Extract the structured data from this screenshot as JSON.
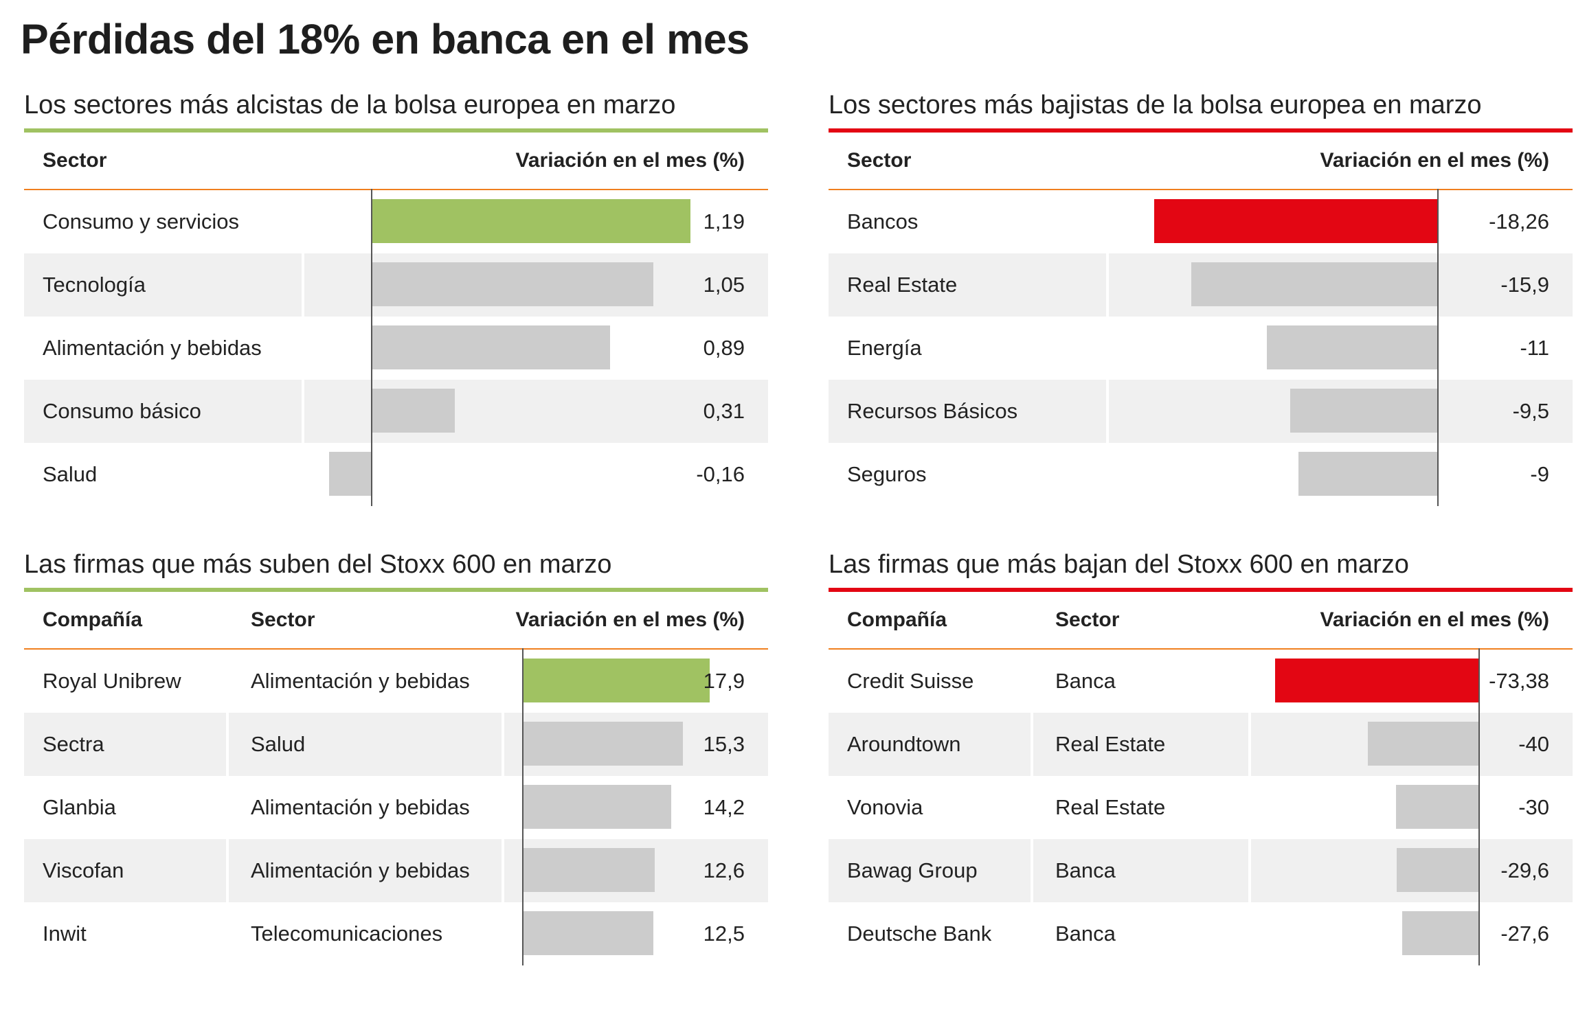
{
  "title": "Pérdidas del 18% en banca en el mes",
  "colors": {
    "positive_accent": "#a0c262",
    "negative_accent": "#e30613",
    "neutral_bar": "#cccccc",
    "header_rule": "#f07f1e",
    "shaded_row": "#f0f0f0"
  },
  "chart_data": [
    {
      "type": "bar",
      "title": "Los sectores más alcistas de la bolsa europea en marzo",
      "columns": [
        "Sector",
        "Variación en el mes (%)"
      ],
      "categories": [
        "Consumo y servicios",
        "Tecnología",
        "Alimentación y bebidas",
        "Consumo básico",
        "Salud"
      ],
      "values": [
        1.19,
        1.05,
        0.89,
        0.31,
        -0.16
      ],
      "labels": [
        "1,19",
        "1,05",
        "0,89",
        "0,31",
        "-0,16"
      ],
      "highlight_index": 0
    },
    {
      "type": "bar",
      "title": "Los sectores más bajistas de la bolsa europea en marzo",
      "columns": [
        "Sector",
        "Variación en el mes (%)"
      ],
      "categories": [
        "Bancos",
        "Real Estate",
        "Energía",
        "Recursos Básicos",
        "Seguros"
      ],
      "values": [
        -18.26,
        -15.9,
        -11,
        -9.5,
        -9
      ],
      "labels": [
        "-18,26",
        "-15,9",
        "-11",
        "-9,5",
        "-9"
      ],
      "highlight_index": 0
    },
    {
      "type": "bar",
      "title": "Las firmas que más suben del Stoxx 600 en marzo",
      "columns": [
        "Compañía",
        "Sector",
        "Variación en el mes (%)"
      ],
      "categories": [
        "Royal Unibrew",
        "Sectra",
        "Glanbia",
        "Viscofan",
        "Inwit"
      ],
      "sectors": [
        "Alimentación y bebidas",
        "Salud",
        "Alimentación y bebidas",
        "Alimentación y bebidas",
        "Telecomunicaciones"
      ],
      "values": [
        17.9,
        15.3,
        14.2,
        12.6,
        12.5
      ],
      "labels": [
        "17,9",
        "15,3",
        "14,2",
        "12,6",
        "12,5"
      ],
      "highlight_index": 0
    },
    {
      "type": "bar",
      "title": "Las firmas que más bajan  del Stoxx 600 en marzo",
      "columns": [
        "Compañía",
        "Sector",
        "Variación en el mes (%)"
      ],
      "categories": [
        "Credit Suisse",
        "Aroundtown",
        "Vonovia",
        "Bawag Group",
        "Deutsche Bank"
      ],
      "sectors": [
        "Banca",
        "Real Estate",
        "Real Estate",
        "Banca",
        "Banca"
      ],
      "values": [
        -73.38,
        -40,
        -30,
        -29.6,
        -27.6
      ],
      "labels": [
        "-73,38",
        "-40",
        "-30",
        "-29,6",
        "-27,6"
      ],
      "highlight_index": 0
    }
  ]
}
